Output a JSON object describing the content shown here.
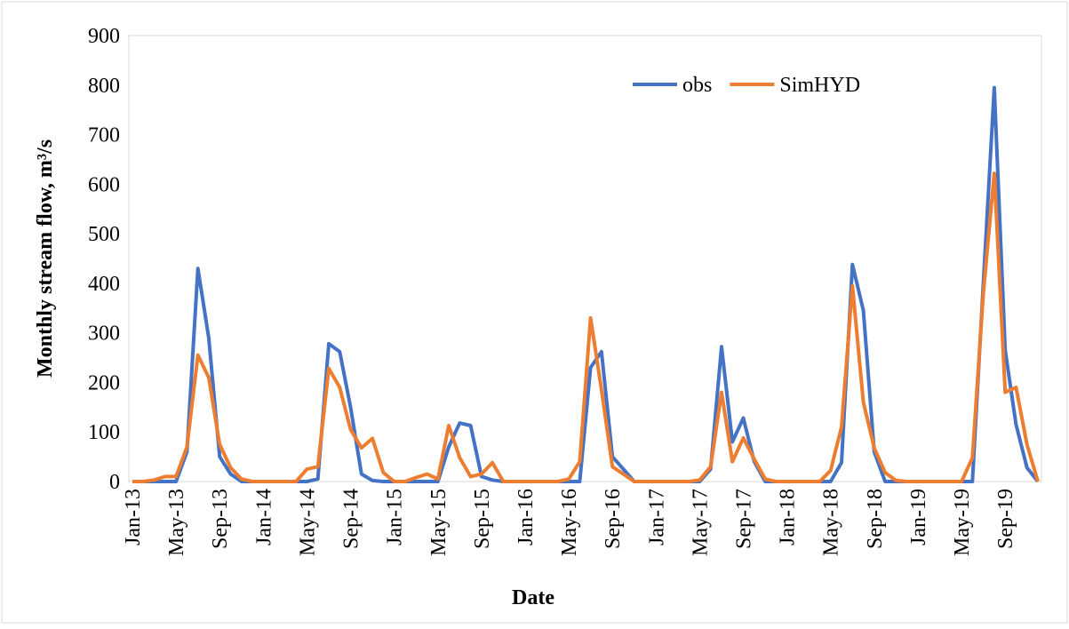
{
  "chart_data": {
    "type": "line",
    "y_label": "Monthly stream flow, m³/s",
    "x_label": "Date",
    "categories": [
      "Jan-13",
      null,
      null,
      null,
      "May-13",
      null,
      null,
      null,
      "Sep-13",
      null,
      null,
      null,
      "Jan-14",
      null,
      null,
      null,
      "May-14",
      null,
      null,
      null,
      "Sep-14",
      null,
      null,
      null,
      "Jan-15",
      null,
      null,
      null,
      "May-15",
      null,
      null,
      null,
      "Sep-15",
      null,
      null,
      null,
      "Jan-16",
      null,
      null,
      null,
      "May-16",
      null,
      null,
      null,
      "Sep-16",
      null,
      null,
      null,
      "Jan-17",
      null,
      null,
      null,
      "May-17",
      null,
      null,
      null,
      "Sep-17",
      null,
      null,
      null,
      "Jan-18",
      null,
      null,
      null,
      "May-18",
      null,
      null,
      null,
      "Sep-18",
      null,
      null,
      null,
      "Jan-19",
      null,
      null,
      null,
      "May-19",
      null,
      null,
      null,
      "Sep-19",
      null,
      null,
      null
    ],
    "series": [
      {
        "name": "obs",
        "color": "#4472c4",
        "values": [
          0,
          0,
          0,
          0,
          0,
          60,
          430,
          290,
          50,
          15,
          0,
          0,
          0,
          0,
          0,
          0,
          0,
          5,
          278,
          262,
          150,
          15,
          2,
          0,
          0,
          0,
          0,
          0,
          0,
          70,
          118,
          113,
          10,
          3,
          0,
          0,
          0,
          0,
          0,
          0,
          0,
          0,
          230,
          262,
          50,
          25,
          0,
          0,
          0,
          0,
          0,
          0,
          0,
          25,
          272,
          80,
          128,
          40,
          0,
          0,
          0,
          0,
          0,
          0,
          0,
          38,
          438,
          345,
          60,
          0,
          0,
          0,
          0,
          0,
          0,
          0,
          0,
          0,
          400,
          795,
          265,
          115,
          28,
          0
        ]
      },
      {
        "name": "SimHYD",
        "color": "#ed7d31",
        "values": [
          0,
          0,
          3,
          10,
          10,
          70,
          255,
          210,
          75,
          28,
          5,
          0,
          0,
          0,
          0,
          0,
          25,
          30,
          228,
          190,
          105,
          68,
          87,
          18,
          0,
          0,
          8,
          15,
          5,
          113,
          48,
          10,
          15,
          38,
          0,
          0,
          0,
          0,
          0,
          0,
          5,
          40,
          330,
          185,
          30,
          15,
          0,
          0,
          0,
          0,
          0,
          0,
          3,
          30,
          180,
          40,
          88,
          45,
          5,
          0,
          0,
          0,
          0,
          0,
          22,
          110,
          395,
          160,
          68,
          18,
          2,
          0,
          0,
          0,
          0,
          0,
          0,
          48,
          380,
          622,
          180,
          190,
          75,
          0
        ]
      }
    ],
    "ylim": [
      0,
      900
    ],
    "yticks": [
      0,
      100,
      200,
      300,
      400,
      500,
      600,
      700,
      800,
      900
    ],
    "grid": false,
    "legend": "top-right"
  }
}
